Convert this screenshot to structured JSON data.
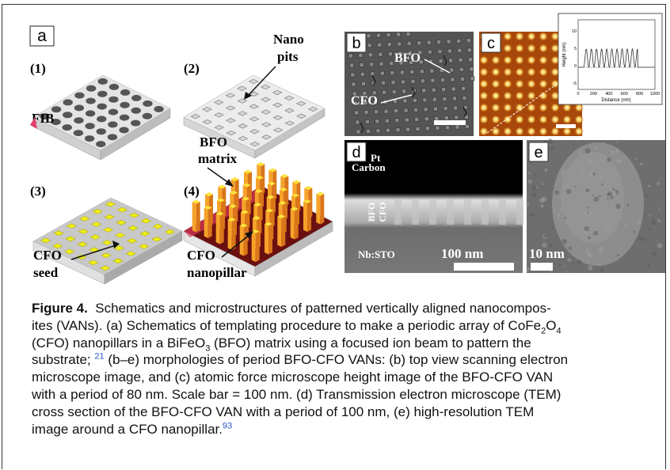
{
  "panel_a": {
    "label": "a",
    "steps": [
      "(1)",
      "(2)",
      "(3)",
      "(4)"
    ],
    "annotations": {
      "fib": "FIB",
      "nano_pits": [
        "Nano",
        "pits"
      ],
      "bfo_matrix": [
        "BFO",
        "matrix"
      ],
      "cfo_seed": [
        "CFO",
        "seed"
      ],
      "cfo_nanopillar": [
        "CFO",
        "nanopillar"
      ]
    }
  },
  "panel_b": {
    "label": "b",
    "bfo": "BFO",
    "cfo": "CFO"
  },
  "panel_c": {
    "label": "c",
    "inset": {
      "y_label": "Height (nm)",
      "x_label": "Distance (nm)",
      "xticks": [
        "0",
        "200",
        "400",
        "600",
        "800",
        "1000"
      ],
      "yticks": [
        "10",
        "5",
        "0",
        "-5"
      ]
    }
  },
  "panel_d": {
    "label": "d",
    "pt": "Pt",
    "carbon": "Carbon",
    "bfo": "BFO",
    "cfo": "CFO",
    "substrate": "Nb:STO",
    "scale": "100 nm"
  },
  "panel_e": {
    "label": "e",
    "scale": "10 nm"
  },
  "caption": {
    "lines": [
      [
        "Figure 4.",
        "  Schematics and microstructures of patterned vertically aligned nanocompos-"
      ],
      [
        "ites (VANs). (a) Schematics of templating procedure to make a periodic array of CoFe",
        "2",
        "O",
        "4"
      ],
      [
        "(CFO) nanopillars in a BiFeO",
        "3",
        " (BFO) matrix using a focused ion beam to pattern the"
      ],
      [
        "substrate; ",
        "21",
        " (b–e) morphologies of period BFO-CFO VANs: (b) top view scanning electron"
      ],
      [
        "microscope image, and (c) atomic force microscope height image of the BFO-CFO VAN"
      ],
      [
        "with a period of 80 nm. Scale bar = 100 nm. (d) Transmission electron microscope (TEM)"
      ],
      [
        "cross section of the BFO-CFO VAN with a period of 100 nm, (e) high-resolution TEM"
      ],
      [
        "image around a CFO nanopillar.",
        "93"
      ]
    ]
  }
}
